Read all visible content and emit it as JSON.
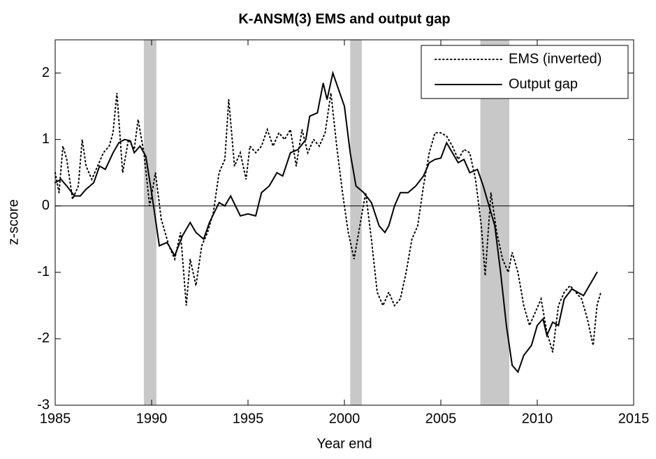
{
  "chart_data": {
    "type": "line",
    "title": "K-ANSM(3) EMS and output gap",
    "xlabel": "Year end",
    "ylabel": "z-score",
    "xlim": [
      1985,
      2015
    ],
    "ylim": [
      -3,
      2.5
    ],
    "xticks": [
      1985,
      1990,
      1995,
      2000,
      2005,
      2010,
      2015
    ],
    "yticks": [
      -3,
      -2,
      -1,
      0,
      1,
      2
    ],
    "zero_line": 0,
    "legend": "upper right",
    "shade_color": "#c8c8c8",
    "recessions": [
      [
        1989.6,
        1990.25
      ],
      [
        2000.3,
        2000.9
      ],
      [
        2007.05,
        2008.55
      ]
    ],
    "series": [
      {
        "name": "EMS (inverted)",
        "color": "#000000",
        "style": "dotted",
        "x": [
          1985.0,
          1985.2,
          1985.4,
          1985.6,
          1985.9,
          1986.2,
          1986.4,
          1986.6,
          1986.9,
          1987.2,
          1987.5,
          1987.8,
          1988.0,
          1988.2,
          1988.5,
          1988.8,
          1989.1,
          1989.3,
          1989.6,
          1989.9,
          1990.2,
          1990.5,
          1990.9,
          1991.2,
          1991.5,
          1991.8,
          1992.0,
          1992.3,
          1992.6,
          1992.9,
          1993.2,
          1993.5,
          1993.8,
          1994.0,
          1994.3,
          1994.6,
          1994.9,
          1995.1,
          1995.4,
          1995.7,
          1996.0,
          1996.3,
          1996.6,
          1996.9,
          1997.2,
          1997.5,
          1997.8,
          1998.1,
          1998.4,
          1998.7,
          1999.0,
          1999.3,
          1999.6,
          1999.9,
          2000.2,
          2000.5,
          2000.8,
          2001.1,
          2001.4,
          2001.7,
          2002.0,
          2002.3,
          2002.6,
          2002.9,
          2003.2,
          2003.5,
          2003.8,
          2004.1,
          2004.4,
          2004.7,
          2005.0,
          2005.3,
          2005.6,
          2005.9,
          2006.2,
          2006.5,
          2006.8,
          2007.1,
          2007.3,
          2007.6,
          2007.9,
          2008.2,
          2008.5,
          2008.7,
          2009.0,
          2009.3,
          2009.6,
          2009.9,
          2010.2,
          2010.5,
          2010.8,
          2011.1,
          2011.4,
          2011.7,
          2012.0,
          2012.3,
          2012.6,
          2012.9,
          2013.1,
          2013.3
        ],
        "values": [
          0.5,
          0.2,
          0.9,
          0.7,
          0.1,
          0.3,
          1.0,
          0.6,
          0.4,
          0.6,
          0.8,
          0.9,
          1.1,
          1.7,
          0.5,
          1.0,
          0.85,
          1.3,
          0.8,
          0.0,
          0.5,
          -0.2,
          -0.6,
          -0.8,
          -0.4,
          -1.5,
          -0.8,
          -1.2,
          -0.6,
          -0.4,
          -0.1,
          0.5,
          0.7,
          1.6,
          0.6,
          0.8,
          0.4,
          0.9,
          0.8,
          0.9,
          1.15,
          0.9,
          1.1,
          1.0,
          1.15,
          0.6,
          1.15,
          0.8,
          1.0,
          0.9,
          1.1,
          1.7,
          0.9,
          0.2,
          -0.4,
          -0.8,
          -0.3,
          0.2,
          -0.5,
          -1.3,
          -1.5,
          -1.3,
          -1.5,
          -1.4,
          -1.0,
          -0.5,
          -0.3,
          0.3,
          0.8,
          1.1,
          1.1,
          1.05,
          0.9,
          0.7,
          0.85,
          0.8,
          0.4,
          -0.3,
          -1.05,
          0.2,
          -0.4,
          -0.8,
          -1.0,
          -0.7,
          -1.0,
          -1.5,
          -1.8,
          -1.6,
          -1.4,
          -1.9,
          -2.2,
          -1.5,
          -1.3,
          -1.2,
          -1.3,
          -1.4,
          -1.7,
          -2.1,
          -1.5,
          -1.3
        ]
      },
      {
        "name": "Output gap",
        "color": "#000000",
        "style": "solid",
        "x": [
          1985.0,
          1985.3,
          1985.6,
          1986.0,
          1986.3,
          1986.6,
          1987.0,
          1987.3,
          1987.6,
          1988.0,
          1988.3,
          1988.6,
          1988.9,
          1989.1,
          1989.4,
          1989.7,
          1990.0,
          1990.4,
          1990.8,
          1991.2,
          1991.6,
          1992.0,
          1992.3,
          1992.7,
          1993.0,
          1993.5,
          1993.8,
          1994.1,
          1994.6,
          1995.0,
          1995.4,
          1995.7,
          1996.1,
          1996.5,
          1996.8,
          1997.2,
          1997.6,
          1998.0,
          1998.2,
          1998.6,
          1998.9,
          1999.1,
          1999.4,
          1999.7,
          2000.0,
          2000.3,
          2000.6,
          2001.0,
          2001.4,
          2001.8,
          2002.1,
          2002.3,
          2002.6,
          2002.9,
          2003.3,
          2003.7,
          2004.1,
          2004.4,
          2004.7,
          2005.0,
          2005.3,
          2005.6,
          2005.9,
          2006.2,
          2006.5,
          2006.9,
          2007.2,
          2007.5,
          2007.8,
          2008.1,
          2008.4,
          2008.7,
          2009.0,
          2009.3,
          2009.7,
          2010.0,
          2010.3,
          2010.5,
          2010.8,
          2011.1,
          2011.4,
          2011.8,
          2012.1,
          2012.4,
          2012.8,
          2013.1
        ],
        "values": [
          0.35,
          0.4,
          0.3,
          0.15,
          0.15,
          0.25,
          0.35,
          0.6,
          0.55,
          0.8,
          0.95,
          1.0,
          0.98,
          0.8,
          0.9,
          0.75,
          0.2,
          -0.6,
          -0.55,
          -0.75,
          -0.45,
          -0.25,
          -0.4,
          -0.5,
          -0.25,
          0.05,
          0.0,
          0.15,
          -0.15,
          -0.12,
          -0.15,
          0.2,
          0.3,
          0.5,
          0.45,
          0.8,
          0.85,
          1.0,
          1.35,
          1.4,
          1.85,
          1.6,
          2.0,
          1.75,
          1.5,
          0.8,
          0.3,
          0.2,
          0.05,
          -0.3,
          -0.4,
          -0.3,
          0.0,
          0.2,
          0.2,
          0.3,
          0.45,
          0.65,
          0.7,
          0.72,
          0.95,
          0.8,
          0.65,
          0.7,
          0.5,
          0.55,
          0.3,
          0.0,
          -0.3,
          -1.0,
          -1.8,
          -2.4,
          -2.5,
          -2.25,
          -2.1,
          -1.8,
          -1.7,
          -1.95,
          -1.75,
          -1.8,
          -1.4,
          -1.25,
          -1.3,
          -1.35,
          -1.15,
          -1.0
        ]
      }
    ]
  }
}
